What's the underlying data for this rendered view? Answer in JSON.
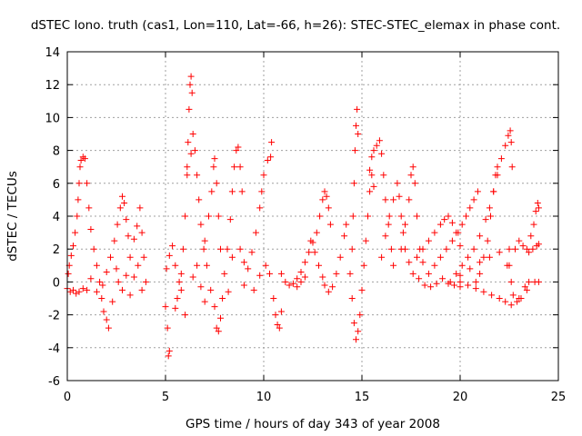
{
  "chart_data": {
    "type": "scatter",
    "title": "dSTEC Iono. truth (cas1, Lon=110, Lat=-66, h=26): STEC-STEC_elemax in phase cont.",
    "xlabel": "GPS time / hours of day 343 of year 2008",
    "ylabel": "dSTEC  / TECUs",
    "xlim": [
      0,
      25
    ],
    "ylim": [
      -6,
      14
    ],
    "x_ticks": [
      0,
      5,
      10,
      15,
      20,
      25
    ],
    "y_ticks": [
      -6,
      -4,
      -2,
      0,
      2,
      4,
      6,
      8,
      10,
      12,
      14
    ],
    "x_tick_labels": [
      "0",
      "5",
      "10",
      "15",
      "20",
      "25"
    ],
    "y_tick_labels": [
      "-6",
      "-4",
      "-2",
      "0",
      "2",
      "4",
      "6",
      "8",
      "10",
      "12",
      "14"
    ],
    "grid": true,
    "marker": "+",
    "marker_color": "#ff0000",
    "legend": "none",
    "series": [
      {
        "points": [
          [
            0.0,
            -0.4
          ],
          [
            0.15,
            -0.6
          ],
          [
            0.3,
            -0.5
          ],
          [
            0.45,
            -0.7
          ],
          [
            0.6,
            -0.6
          ],
          [
            0.8,
            -0.4
          ],
          [
            1.0,
            -0.5
          ],
          [
            0.05,
            0.5
          ],
          [
            0.1,
            1.0
          ],
          [
            0.2,
            1.6
          ],
          [
            0.3,
            2.2
          ],
          [
            0.4,
            3.0
          ],
          [
            0.5,
            4.0
          ],
          [
            0.55,
            5.0
          ],
          [
            0.6,
            6.0
          ],
          [
            0.65,
            7.0
          ],
          [
            0.7,
            7.4
          ],
          [
            0.8,
            7.6
          ],
          [
            0.9,
            7.5
          ],
          [
            1.0,
            6.0
          ],
          [
            1.1,
            4.5
          ],
          [
            1.2,
            3.2
          ],
          [
            1.35,
            2.0
          ],
          [
            1.5,
            1.0
          ],
          [
            1.65,
            0.0
          ],
          [
            1.75,
            -1.0
          ],
          [
            1.85,
            -1.8
          ],
          [
            2.0,
            -2.3
          ],
          [
            2.1,
            -2.8
          ],
          [
            1.8,
            -0.2
          ],
          [
            2.0,
            0.6
          ],
          [
            2.2,
            1.5
          ],
          [
            2.4,
            2.5
          ],
          [
            2.55,
            3.5
          ],
          [
            2.7,
            4.5
          ],
          [
            2.8,
            5.2
          ],
          [
            2.9,
            4.8
          ],
          [
            3.0,
            3.8
          ],
          [
            3.1,
            2.8
          ],
          [
            2.6,
            0.0
          ],
          [
            2.8,
            -0.5
          ],
          [
            3.0,
            0.4
          ],
          [
            3.2,
            1.5
          ],
          [
            3.4,
            2.6
          ],
          [
            3.55,
            3.4
          ],
          [
            3.7,
            4.5
          ],
          [
            3.8,
            3.0
          ],
          [
            3.9,
            1.5
          ],
          [
            4.0,
            0.0
          ],
          [
            3.2,
            -0.8
          ],
          [
            3.4,
            0.3
          ],
          [
            3.6,
            1.0
          ],
          [
            3.8,
            -0.5
          ],
          [
            2.3,
            -1.2
          ],
          [
            2.5,
            0.8
          ],
          [
            1.5,
            -0.6
          ],
          [
            1.2,
            0.2
          ],
          [
            5.0,
            -1.5
          ],
          [
            5.1,
            -2.8
          ],
          [
            5.2,
            -4.2
          ],
          [
            5.15,
            -4.5
          ],
          [
            5.05,
            0.8
          ],
          [
            5.2,
            1.6
          ],
          [
            5.35,
            2.2
          ],
          [
            5.5,
            1.0
          ],
          [
            5.7,
            0.0
          ],
          [
            5.5,
            -1.6
          ],
          [
            5.6,
            -1.0
          ],
          [
            5.8,
            0.5
          ],
          [
            5.9,
            2.0
          ],
          [
            6.0,
            4.0
          ],
          [
            6.1,
            6.5
          ],
          [
            6.15,
            8.5
          ],
          [
            6.2,
            10.5
          ],
          [
            6.25,
            12.0
          ],
          [
            6.3,
            12.5
          ],
          [
            6.35,
            11.5
          ],
          [
            6.4,
            9.0
          ],
          [
            6.1,
            7.0
          ],
          [
            6.3,
            7.8
          ],
          [
            6.5,
            8.0
          ],
          [
            6.6,
            6.5
          ],
          [
            6.7,
            5.0
          ],
          [
            6.8,
            3.5
          ],
          [
            6.95,
            2.0
          ],
          [
            7.1,
            1.0
          ],
          [
            7.0,
            2.5
          ],
          [
            7.2,
            4.0
          ],
          [
            7.35,
            5.5
          ],
          [
            7.45,
            7.0
          ],
          [
            7.5,
            7.5
          ],
          [
            7.6,
            6.0
          ],
          [
            7.7,
            4.0
          ],
          [
            7.8,
            2.0
          ],
          [
            7.3,
            -0.5
          ],
          [
            7.5,
            -1.5
          ],
          [
            7.6,
            -2.8
          ],
          [
            7.7,
            -3.0
          ],
          [
            7.8,
            -2.2
          ],
          [
            7.9,
            -1.0
          ],
          [
            8.0,
            0.5
          ],
          [
            8.15,
            2.0
          ],
          [
            8.3,
            3.8
          ],
          [
            8.4,
            5.5
          ],
          [
            8.5,
            7.0
          ],
          [
            8.6,
            8.0
          ],
          [
            8.7,
            8.2
          ],
          [
            8.8,
            7.0
          ],
          [
            8.9,
            5.5
          ],
          [
            8.8,
            2.0
          ],
          [
            9.0,
            1.2
          ],
          [
            9.2,
            0.8
          ],
          [
            9.4,
            1.8
          ],
          [
            9.6,
            3.0
          ],
          [
            9.8,
            4.5
          ],
          [
            9.9,
            5.5
          ],
          [
            10.0,
            6.5
          ],
          [
            10.2,
            7.4
          ],
          [
            10.35,
            7.6
          ],
          [
            10.4,
            8.5
          ],
          [
            9.5,
            -0.5
          ],
          [
            9.8,
            0.4
          ],
          [
            10.1,
            1.0
          ],
          [
            10.3,
            0.5
          ],
          [
            10.5,
            -1.0
          ],
          [
            10.6,
            -2.0
          ],
          [
            10.7,
            -2.6
          ],
          [
            10.8,
            -2.8
          ],
          [
            10.9,
            -1.8
          ],
          [
            6.6,
            1.0
          ],
          [
            6.8,
            -0.3
          ],
          [
            7.0,
            -1.2
          ],
          [
            8.2,
            -0.6
          ],
          [
            8.4,
            1.5
          ],
          [
            9.0,
            -0.2
          ],
          [
            6.0,
            -2.0
          ],
          [
            5.8,
            -0.5
          ],
          [
            6.4,
            0.3
          ],
          [
            10.9,
            0.5
          ],
          [
            11.1,
            0.0
          ],
          [
            11.3,
            -0.2
          ],
          [
            11.5,
            -0.1
          ],
          [
            11.7,
            -0.3
          ],
          [
            11.9,
            0.0
          ],
          [
            12.1,
            0.3
          ],
          [
            11.7,
            0.2
          ],
          [
            11.9,
            0.6
          ],
          [
            12.1,
            1.2
          ],
          [
            12.3,
            1.8
          ],
          [
            12.5,
            2.4
          ],
          [
            12.7,
            3.0
          ],
          [
            12.85,
            4.0
          ],
          [
            13.0,
            5.0
          ],
          [
            13.1,
            5.5
          ],
          [
            13.2,
            5.2
          ],
          [
            13.3,
            4.5
          ],
          [
            13.4,
            3.5
          ],
          [
            12.4,
            2.5
          ],
          [
            12.6,
            1.8
          ],
          [
            12.8,
            1.0
          ],
          [
            13.0,
            0.3
          ],
          [
            13.1,
            -0.2
          ],
          [
            13.3,
            -0.6
          ],
          [
            13.5,
            -0.3
          ],
          [
            13.7,
            0.5
          ],
          [
            13.9,
            1.5
          ],
          [
            14.1,
            2.8
          ],
          [
            14.2,
            3.5
          ],
          [
            14.4,
            0.5
          ],
          [
            14.5,
            2.0
          ],
          [
            14.55,
            4.0
          ],
          [
            14.6,
            6.0
          ],
          [
            14.65,
            8.0
          ],
          [
            14.7,
            9.5
          ],
          [
            14.75,
            10.5
          ],
          [
            14.8,
            9.0
          ],
          [
            14.5,
            -1.0
          ],
          [
            14.6,
            -2.5
          ],
          [
            14.7,
            -3.5
          ],
          [
            14.8,
            -3.0
          ],
          [
            14.9,
            -2.0
          ],
          [
            15.0,
            -0.5
          ],
          [
            15.1,
            1.0
          ],
          [
            15.2,
            2.5
          ],
          [
            15.3,
            4.0
          ],
          [
            15.4,
            5.5
          ],
          [
            15.5,
            6.5
          ],
          [
            15.6,
            5.8
          ],
          [
            15.4,
            6.8
          ],
          [
            15.5,
            7.6
          ],
          [
            15.6,
            8.0
          ],
          [
            15.75,
            8.3
          ],
          [
            15.9,
            8.6
          ],
          [
            16.0,
            7.8
          ],
          [
            16.1,
            6.5
          ],
          [
            16.2,
            5.0
          ],
          [
            16.35,
            3.5
          ],
          [
            16.5,
            2.0
          ],
          [
            16.6,
            1.0
          ],
          [
            16.0,
            1.5
          ],
          [
            16.2,
            2.8
          ],
          [
            16.4,
            4.0
          ],
          [
            16.6,
            5.0
          ],
          [
            16.8,
            6.0
          ],
          [
            16.9,
            5.2
          ],
          [
            17.0,
            4.0
          ],
          [
            17.1,
            3.0
          ],
          [
            17.2,
            2.0
          ],
          [
            17.4,
            1.2
          ],
          [
            17.0,
            2.0
          ],
          [
            17.2,
            3.5
          ],
          [
            17.4,
            5.0
          ],
          [
            17.5,
            6.5
          ],
          [
            17.6,
            7.0
          ],
          [
            17.7,
            6.0
          ],
          [
            17.8,
            4.0
          ],
          [
            17.95,
            2.0
          ],
          [
            18.1,
            1.2
          ],
          [
            17.6,
            0.5
          ],
          [
            17.9,
            0.2
          ],
          [
            18.2,
            -0.2
          ],
          [
            18.5,
            -0.3
          ],
          [
            18.8,
            -0.1
          ],
          [
            19.1,
            0.2
          ],
          [
            19.4,
            -0.1
          ],
          [
            19.7,
            -0.2
          ],
          [
            20.0,
            0.0
          ],
          [
            17.8,
            1.5
          ],
          [
            18.1,
            2.0
          ],
          [
            18.4,
            2.5
          ],
          [
            18.7,
            3.0
          ],
          [
            19.0,
            3.5
          ],
          [
            19.2,
            3.8
          ],
          [
            19.4,
            4.0
          ],
          [
            19.6,
            3.6
          ],
          [
            19.8,
            3.0
          ],
          [
            20.0,
            2.2
          ],
          [
            18.4,
            0.5
          ],
          [
            18.7,
            1.0
          ],
          [
            19.0,
            1.5
          ],
          [
            19.3,
            2.0
          ],
          [
            19.6,
            2.5
          ],
          [
            19.9,
            3.0
          ],
          [
            20.1,
            3.5
          ],
          [
            20.3,
            4.0
          ],
          [
            20.5,
            4.5
          ],
          [
            20.7,
            5.0
          ],
          [
            20.9,
            5.5
          ],
          [
            19.5,
            0.0
          ],
          [
            19.8,
            0.5
          ],
          [
            20.1,
            1.0
          ],
          [
            20.4,
            1.5
          ],
          [
            20.7,
            2.0
          ],
          [
            21.0,
            2.8
          ],
          [
            21.3,
            3.8
          ],
          [
            21.5,
            4.5
          ],
          [
            21.7,
            5.5
          ],
          [
            21.9,
            6.5
          ],
          [
            22.1,
            7.5
          ],
          [
            22.3,
            8.3
          ],
          [
            22.45,
            8.9
          ],
          [
            22.55,
            9.2
          ],
          [
            22.6,
            8.5
          ],
          [
            22.65,
            7.0
          ],
          [
            20.8,
            0.0
          ],
          [
            21.0,
            0.5
          ],
          [
            21.2,
            1.5
          ],
          [
            21.4,
            2.5
          ],
          [
            21.55,
            4.0
          ],
          [
            21.7,
            5.5
          ],
          [
            21.8,
            6.5
          ],
          [
            21.9,
            7.0
          ],
          [
            22.4,
            1.0
          ],
          [
            22.6,
            0.0
          ],
          [
            22.7,
            -0.8
          ],
          [
            22.9,
            -1.2
          ],
          [
            23.1,
            -1.0
          ],
          [
            23.3,
            -0.3
          ],
          [
            23.5,
            0.0
          ],
          [
            22.5,
            1.0
          ],
          [
            22.8,
            2.0
          ],
          [
            23.0,
            2.5
          ],
          [
            23.2,
            2.2
          ],
          [
            23.4,
            2.0
          ],
          [
            23.6,
            2.8
          ],
          [
            23.75,
            3.5
          ],
          [
            23.85,
            4.3
          ],
          [
            23.95,
            4.8
          ],
          [
            24.0,
            4.5
          ],
          [
            23.5,
            1.8
          ],
          [
            23.7,
            2.0
          ],
          [
            23.9,
            2.2
          ],
          [
            24.0,
            2.3
          ],
          [
            20.0,
            -0.3
          ],
          [
            20.4,
            -0.2
          ],
          [
            20.8,
            -0.4
          ],
          [
            21.2,
            -0.6
          ],
          [
            21.6,
            -0.8
          ],
          [
            22.0,
            -1.0
          ],
          [
            22.3,
            -1.2
          ],
          [
            22.6,
            -1.4
          ],
          [
            23.0,
            -1.0
          ],
          [
            23.4,
            -0.5
          ],
          [
            23.8,
            0.0
          ],
          [
            24.0,
            0.0
          ],
          [
            20.0,
            0.4
          ],
          [
            20.5,
            0.8
          ],
          [
            21.0,
            1.2
          ],
          [
            21.5,
            1.5
          ],
          [
            22.0,
            1.8
          ],
          [
            22.5,
            2.0
          ]
        ]
      }
    ]
  }
}
